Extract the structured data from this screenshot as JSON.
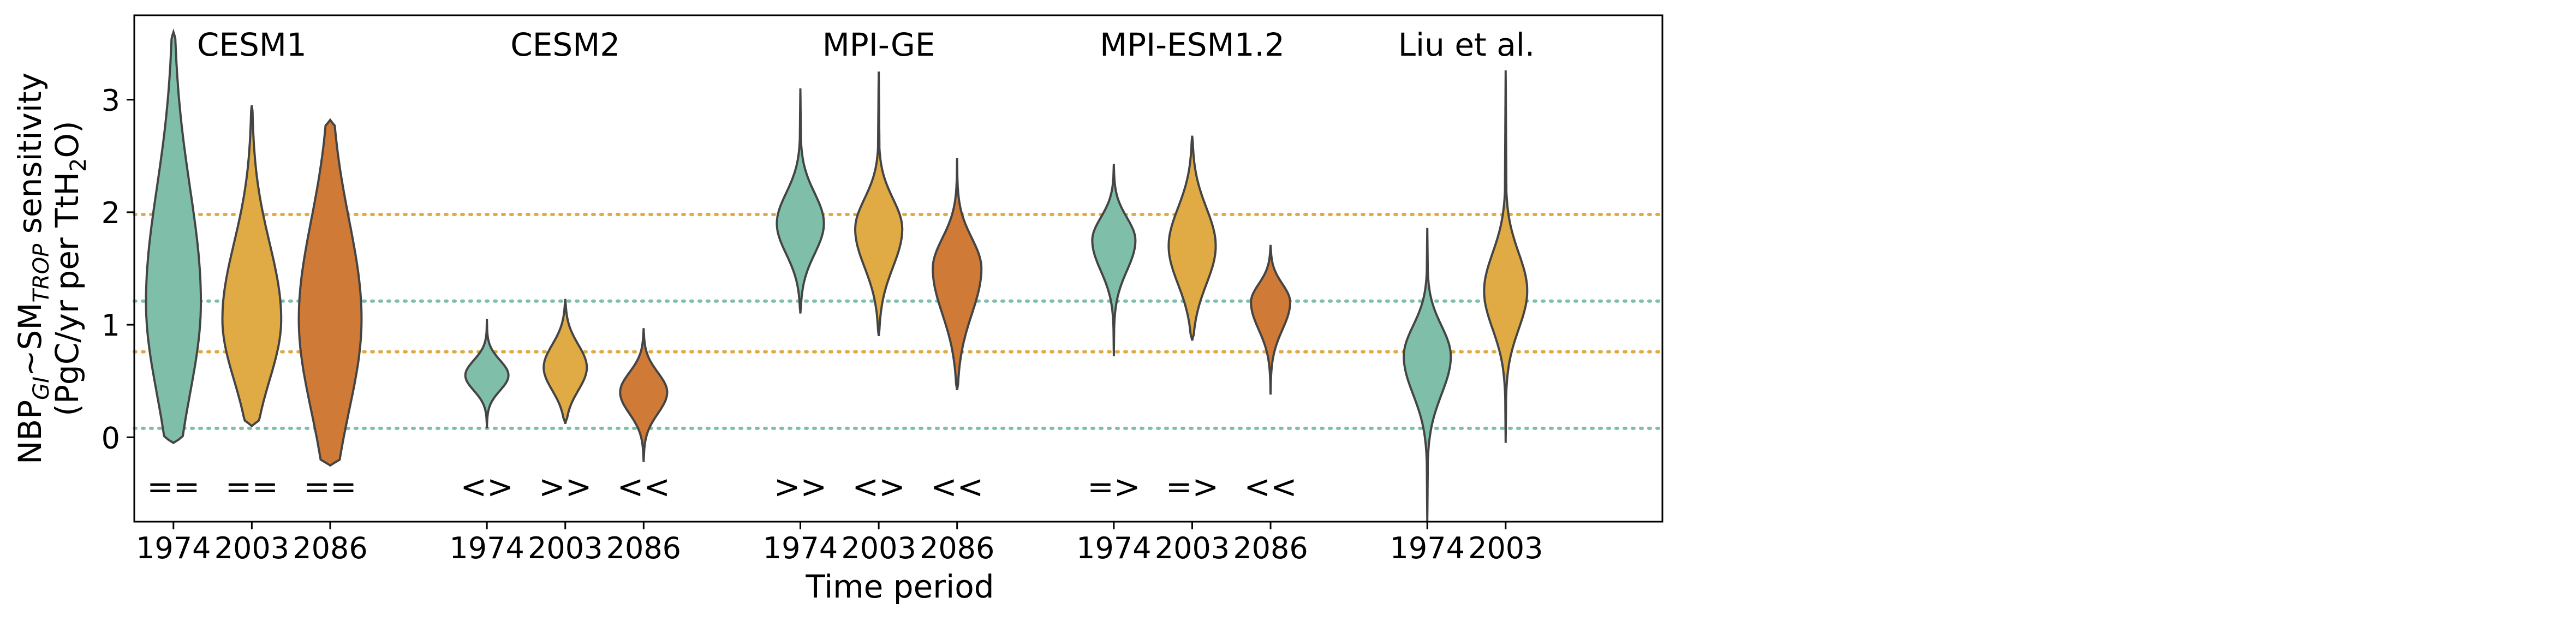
{
  "chart_data": {
    "type": "violin",
    "ylabel_main": "NBP",
    "ylabel_sub1": "GI",
    "ylabel_mid": "~SM",
    "ylabel_sub2": "TROP",
    "ylabel_end": " sensitivity",
    "ylabel_line2_pre": "(PgC/yr per TtH",
    "ylabel_line2_sub": "2",
    "ylabel_line2_post": "O)",
    "xlabel": "Time period",
    "ylim": [
      -0.75,
      3.75
    ],
    "yticks": [
      0,
      1,
      2,
      3
    ],
    "colors": {
      "1974": "#7fbfaa",
      "2003": "#e0ab45",
      "2086": "#cf7a37"
    },
    "reference_lines": [
      {
        "y": 1.98,
        "color": "#e0ab45"
      },
      {
        "y": 1.21,
        "color": "#7fbfaa"
      },
      {
        "y": 0.76,
        "color": "#e0ab45"
      },
      {
        "y": 0.08,
        "color": "#7fbfaa"
      }
    ],
    "groups": [
      {
        "name": "CESM1",
        "violins": [
          {
            "period": "1974",
            "min": -0.05,
            "max": 3.6,
            "q": [
              0.55,
              1.15,
              1.9
            ],
            "peak": 1.2,
            "width": 0.7,
            "sign": "=="
          },
          {
            "period": "2003",
            "min": 0.1,
            "max": 2.95,
            "q": [
              0.7,
              1.1,
              1.6
            ],
            "peak": 1.05,
            "width": 0.75,
            "sign": "=="
          },
          {
            "period": "2086",
            "min": -0.25,
            "max": 2.82,
            "q": [
              0.5,
              1.1,
              1.75
            ],
            "peak": 1.05,
            "width": 0.8,
            "sign": "=="
          }
        ]
      },
      {
        "name": "CESM2",
        "violins": [
          {
            "period": "1974",
            "min": 0.08,
            "max": 1.05,
            "q": [
              0.45,
              0.55,
              0.65
            ],
            "peak": 0.55,
            "width": 0.55,
            "sign": "<>"
          },
          {
            "period": "2003",
            "min": 0.12,
            "max": 1.23,
            "q": [
              0.5,
              0.65,
              0.8
            ],
            "peak": 0.62,
            "width": 0.55,
            "sign": ">>"
          },
          {
            "period": "2086",
            "min": -0.22,
            "max": 0.97,
            "q": [
              0.28,
              0.42,
              0.55
            ],
            "peak": 0.4,
            "width": 0.6,
            "sign": "<<"
          }
        ]
      },
      {
        "name": "MPI-GE",
        "violins": [
          {
            "period": "1974",
            "min": 1.1,
            "max": 3.1,
            "q": [
              1.7,
              1.9,
              2.1
            ],
            "peak": 1.9,
            "width": 0.6,
            "sign": ">>"
          },
          {
            "period": "2003",
            "min": 0.9,
            "max": 3.25,
            "q": [
              1.6,
              1.85,
              2.05
            ],
            "peak": 1.85,
            "width": 0.6,
            "sign": "<>"
          },
          {
            "period": "2086",
            "min": 0.42,
            "max": 2.48,
            "q": [
              1.2,
              1.5,
              1.7
            ],
            "peak": 1.5,
            "width": 0.62,
            "sign": "<<"
          }
        ]
      },
      {
        "name": "MPI-ESM1.2",
        "violins": [
          {
            "period": "1974",
            "min": 0.72,
            "max": 2.43,
            "q": [
              1.5,
              1.7,
              1.85
            ],
            "peak": 1.75,
            "width": 0.55,
            "sign": "=>"
          },
          {
            "period": "2003",
            "min": 0.86,
            "max": 2.68,
            "q": [
              1.45,
              1.7,
              1.95
            ],
            "peak": 1.7,
            "width": 0.6,
            "sign": "=>"
          },
          {
            "period": "2086",
            "min": 0.38,
            "max": 1.71,
            "q": [
              1.0,
              1.18,
              1.3
            ],
            "peak": 1.2,
            "width": 0.5,
            "sign": "<<"
          }
        ]
      },
      {
        "name": "Liu et al.",
        "violins": [
          {
            "period": "1974",
            "min": -0.75,
            "max": 1.86,
            "q": [
              0.45,
              0.7,
              0.9
            ],
            "peak": 0.72,
            "width": 0.6,
            "sign": ""
          },
          {
            "period": "2003",
            "min": -0.05,
            "max": 3.26,
            "q": [
              1.1,
              1.35,
              1.6
            ],
            "peak": 1.3,
            "width": 0.55,
            "sign": ""
          }
        ]
      }
    ]
  }
}
